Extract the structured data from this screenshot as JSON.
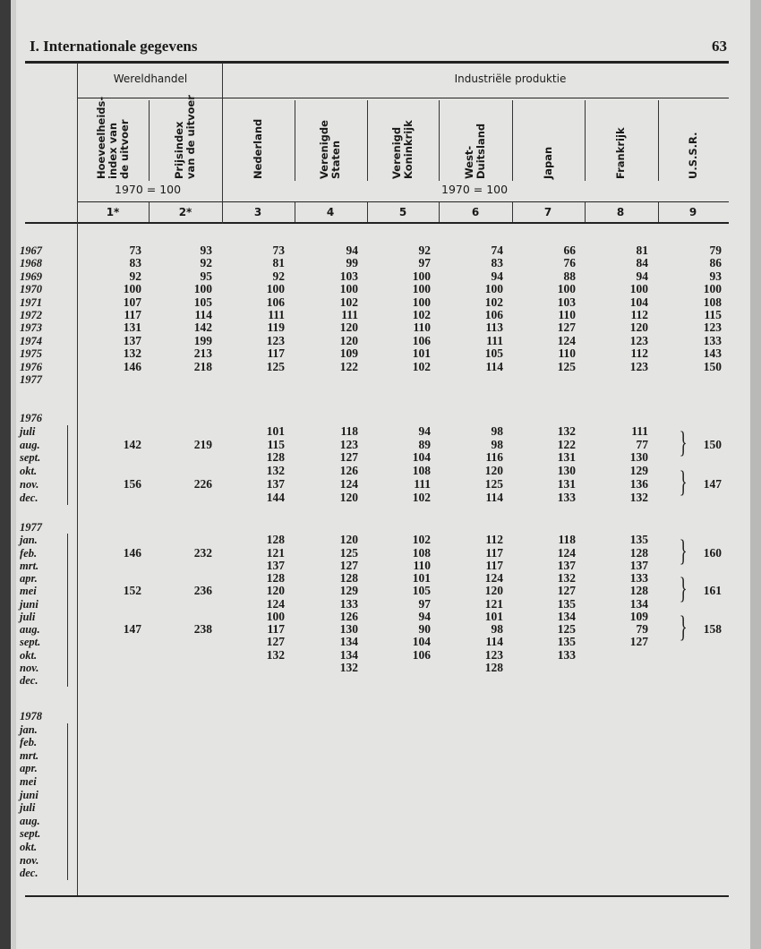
{
  "page": {
    "section_title": "I. Internationale gegevens",
    "page_number": "63"
  },
  "header": {
    "group_trade": "Wereldhandel",
    "group_industry": "Industriële produktie",
    "columns": [
      "Hoeveelheids-\nindex van\nde uitvoer",
      "Prijsindex\nvan de uitvoer",
      "Nederland",
      "Verenigde\nStaten",
      "Verenigd\nKoninkrijk",
      "West-\nDuitsland",
      "Japan",
      "Frankrijk",
      "U.S.S.R."
    ],
    "base_trade": "1970 = 100",
    "base_industry": "1970 = 100",
    "column_numbers": [
      "1*",
      "2*",
      "3",
      "4",
      "5",
      "6",
      "7",
      "8",
      "9"
    ]
  },
  "blocks": [
    {
      "rows": [
        {
          "label": "1967",
          "values": [
            "73",
            "93",
            "73",
            "94",
            "92",
            "74",
            "66",
            "81",
            "79"
          ]
        },
        {
          "label": "1968",
          "values": [
            "83",
            "92",
            "81",
            "99",
            "97",
            "83",
            "76",
            "84",
            "86"
          ]
        },
        {
          "label": "1969",
          "values": [
            "92",
            "95",
            "92",
            "103",
            "100",
            "94",
            "88",
            "94",
            "93"
          ]
        },
        {
          "label": "1970",
          "values": [
            "100",
            "100",
            "100",
            "100",
            "100",
            "100",
            "100",
            "100",
            "100"
          ]
        },
        {
          "label": "1971",
          "values": [
            "107",
            "105",
            "106",
            "102",
            "100",
            "102",
            "103",
            "104",
            "108"
          ]
        },
        {
          "label": "1972",
          "values": [
            "117",
            "114",
            "111",
            "111",
            "102",
            "106",
            "110",
            "112",
            "115"
          ]
        },
        {
          "label": "1973",
          "values": [
            "131",
            "142",
            "119",
            "120",
            "110",
            "113",
            "127",
            "120",
            "123"
          ]
        },
        {
          "label": "1974",
          "values": [
            "137",
            "199",
            "123",
            "120",
            "106",
            "111",
            "124",
            "123",
            "133"
          ]
        },
        {
          "label": "1975",
          "values": [
            "132",
            "213",
            "117",
            "109",
            "101",
            "105",
            "110",
            "112",
            "143"
          ]
        },
        {
          "label": "1976",
          "values": [
            "146",
            "218",
            "125",
            "122",
            "102",
            "114",
            "125",
            "123",
            "150"
          ]
        },
        {
          "label": "1977",
          "values": [
            null,
            null,
            null,
            null,
            null,
            null,
            null,
            null,
            null
          ]
        }
      ]
    },
    {
      "rows": [
        {
          "label": "1976",
          "values": [
            null,
            null,
            null,
            null,
            null,
            null,
            null,
            null,
            null
          ]
        },
        {
          "label": "juli",
          "values": [
            null,
            null,
            "101",
            "118",
            "94",
            "98",
            "132",
            "111",
            null
          ]
        },
        {
          "label": "aug.",
          "values": [
            "142",
            "219",
            "115",
            "123",
            "89",
            "98",
            "122",
            "77",
            "150"
          ]
        },
        {
          "label": "sept.",
          "values": [
            null,
            null,
            "128",
            "127",
            "104",
            "116",
            "131",
            "130",
            null
          ]
        },
        {
          "label": "okt.",
          "values": [
            null,
            null,
            "132",
            "126",
            "108",
            "120",
            "130",
            "129",
            null
          ]
        },
        {
          "label": "nov.",
          "values": [
            "156",
            "226",
            "137",
            "124",
            "111",
            "125",
            "131",
            "136",
            "147"
          ]
        },
        {
          "label": "dec.",
          "values": [
            null,
            null,
            "144",
            "120",
            "102",
            "114",
            "133",
            "132",
            null
          ]
        }
      ]
    },
    {
      "rows": [
        {
          "label": "1977",
          "values": [
            null,
            null,
            null,
            null,
            null,
            null,
            null,
            null,
            null
          ]
        },
        {
          "label": "jan.",
          "values": [
            null,
            null,
            "128",
            "120",
            "102",
            "112",
            "118",
            "135",
            null
          ]
        },
        {
          "label": "feb.",
          "values": [
            "146",
            "232",
            "121",
            "125",
            "108",
            "117",
            "124",
            "128",
            "160"
          ]
        },
        {
          "label": "mrt.",
          "values": [
            null,
            null,
            "137",
            "127",
            "110",
            "117",
            "137",
            "137",
            null
          ]
        },
        {
          "label": "apr.",
          "values": [
            null,
            null,
            "128",
            "128",
            "101",
            "124",
            "132",
            "133",
            null
          ]
        },
        {
          "label": "mei",
          "values": [
            "152",
            "236",
            "120",
            "129",
            "105",
            "120",
            "127",
            "128",
            "161"
          ]
        },
        {
          "label": "juni",
          "values": [
            null,
            null,
            "124",
            "133",
            "97",
            "121",
            "135",
            "134",
            null
          ]
        },
        {
          "label": "juli",
          "values": [
            null,
            null,
            "100",
            "126",
            "94",
            "101",
            "134",
            "109",
            null
          ]
        },
        {
          "label": "aug.",
          "values": [
            "147",
            "238",
            "117",
            "130",
            "90",
            "98",
            "125",
            "79",
            "158"
          ]
        },
        {
          "label": "sept.",
          "values": [
            null,
            null,
            "127",
            "134",
            "104",
            "114",
            "135",
            "127",
            null
          ]
        },
        {
          "label": "okt.",
          "values": [
            null,
            null,
            "132",
            "134",
            "106",
            "123",
            "133",
            null,
            null
          ]
        },
        {
          "label": "nov.",
          "values": [
            null,
            null,
            null,
            "132",
            null,
            "128",
            null,
            null,
            null
          ]
        },
        {
          "label": "dec.",
          "values": [
            null,
            null,
            null,
            null,
            null,
            null,
            null,
            null,
            null
          ]
        }
      ]
    },
    {
      "rows": [
        {
          "label": "1978",
          "values": [
            null,
            null,
            null,
            null,
            null,
            null,
            null,
            null,
            null
          ]
        },
        {
          "label": "jan.",
          "values": [
            null,
            null,
            null,
            null,
            null,
            null,
            null,
            null,
            null
          ]
        },
        {
          "label": "feb.",
          "values": [
            null,
            null,
            null,
            null,
            null,
            null,
            null,
            null,
            null
          ]
        },
        {
          "label": "mrt.",
          "values": [
            null,
            null,
            null,
            null,
            null,
            null,
            null,
            null,
            null
          ]
        },
        {
          "label": "apr.",
          "values": [
            null,
            null,
            null,
            null,
            null,
            null,
            null,
            null,
            null
          ]
        },
        {
          "label": "mei",
          "values": [
            null,
            null,
            null,
            null,
            null,
            null,
            null,
            null,
            null
          ]
        },
        {
          "label": "juni",
          "values": [
            null,
            null,
            null,
            null,
            null,
            null,
            null,
            null,
            null
          ]
        },
        {
          "label": "juli",
          "values": [
            null,
            null,
            null,
            null,
            null,
            null,
            null,
            null,
            null
          ]
        },
        {
          "label": "aug.",
          "values": [
            null,
            null,
            null,
            null,
            null,
            null,
            null,
            null,
            null
          ]
        },
        {
          "label": "sept.",
          "values": [
            null,
            null,
            null,
            null,
            null,
            null,
            null,
            null,
            null
          ]
        },
        {
          "label": "okt.",
          "values": [
            null,
            null,
            null,
            null,
            null,
            null,
            null,
            null,
            null
          ]
        },
        {
          "label": "nov.",
          "values": [
            null,
            null,
            null,
            null,
            null,
            null,
            null,
            null,
            null
          ]
        },
        {
          "label": "dec.",
          "values": [
            null,
            null,
            null,
            null,
            null,
            null,
            null,
            null,
            null
          ]
        }
      ]
    }
  ]
}
